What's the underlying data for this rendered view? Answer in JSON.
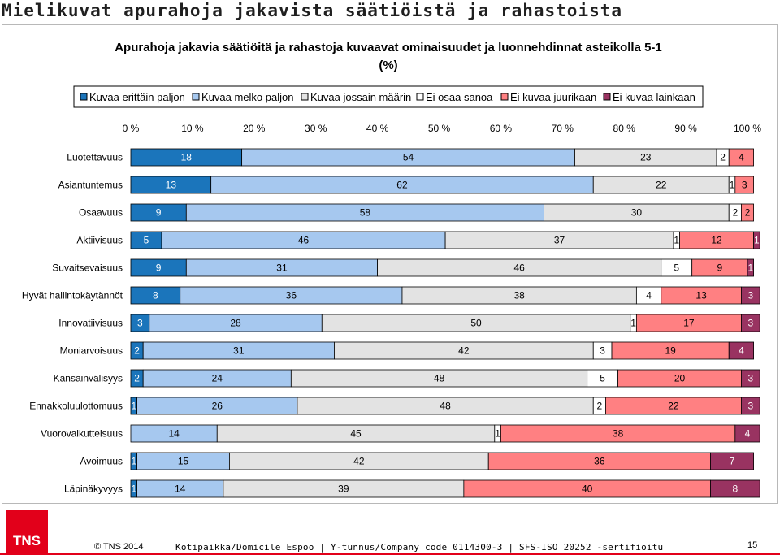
{
  "page_title": "Mielikuvat apurahoja jakavista säätiöistä ja rahastoista",
  "footer": {
    "copyright": "© TNS 2014",
    "company_info": "Kotipaikka/Domicile Espoo | Y-tunnus/Company code 0114300-3 | SFS-ISO 20252 -sertifioitu",
    "page_number": "15",
    "logo_text": "TNS"
  },
  "chart_data": {
    "type": "bar",
    "orientation": "horizontal-stacked-100",
    "title": "Apurahoja jakavia säätiöitä ja rahastoja kuvaavat ominaisuudet ja luonnehdinnat asteikolla 5-1",
    "subtitle": "(%)",
    "legend_position": "top",
    "x_ticks": [
      "0 %",
      "10 %",
      "20 %",
      "30 %",
      "40 %",
      "50 %",
      "60 %",
      "70 %",
      "80 %",
      "90 %",
      "100 %"
    ],
    "xlim": [
      0,
      100
    ],
    "categories": [
      "Luotettavuus",
      "Asiantuntemus",
      "Osaavuus",
      "Aktiivisuus",
      "Suvaitsevaisuus",
      "Hyvät hallintokäytännöt",
      "Innovatiivisuus",
      "Moniarvoisuus",
      "Kansainvälisyys",
      "Ennakkoluulottomuus",
      "Vuorovaikutteisuus",
      "Avoimuus",
      "Läpinäkyvyys"
    ],
    "series": [
      {
        "name": "Kuvaa erittäin paljon",
        "color": "#1b75bb",
        "values": [
          18,
          13,
          9,
          5,
          9,
          8,
          3,
          2,
          2,
          1,
          0,
          1,
          1
        ]
      },
      {
        "name": "Kuvaa melko paljon",
        "color": "#a6c8ef",
        "values": [
          54,
          62,
          58,
          46,
          31,
          36,
          28,
          31,
          24,
          26,
          14,
          15,
          14
        ]
      },
      {
        "name": "Kuvaa jossain määrin",
        "color": "#e3e3e3",
        "values": [
          23,
          22,
          30,
          37,
          46,
          38,
          50,
          42,
          48,
          48,
          45,
          42,
          39
        ]
      },
      {
        "name": "Ei osaa sanoa",
        "color": "#ffffff",
        "values": [
          2,
          1,
          2,
          1,
          5,
          4,
          1,
          3,
          5,
          2,
          1,
          0,
          0
        ]
      },
      {
        "name": "Ei kuvaa juurikaan",
        "color": "#ff8082",
        "values": [
          4,
          3,
          2,
          12,
          9,
          13,
          17,
          19,
          20,
          22,
          38,
          36,
          40
        ]
      },
      {
        "name": "Ei kuvaa lainkaan",
        "color": "#993361",
        "values": [
          0,
          0,
          0,
          1,
          1,
          3,
          3,
          4,
          3,
          3,
          4,
          7,
          8
        ]
      }
    ]
  }
}
